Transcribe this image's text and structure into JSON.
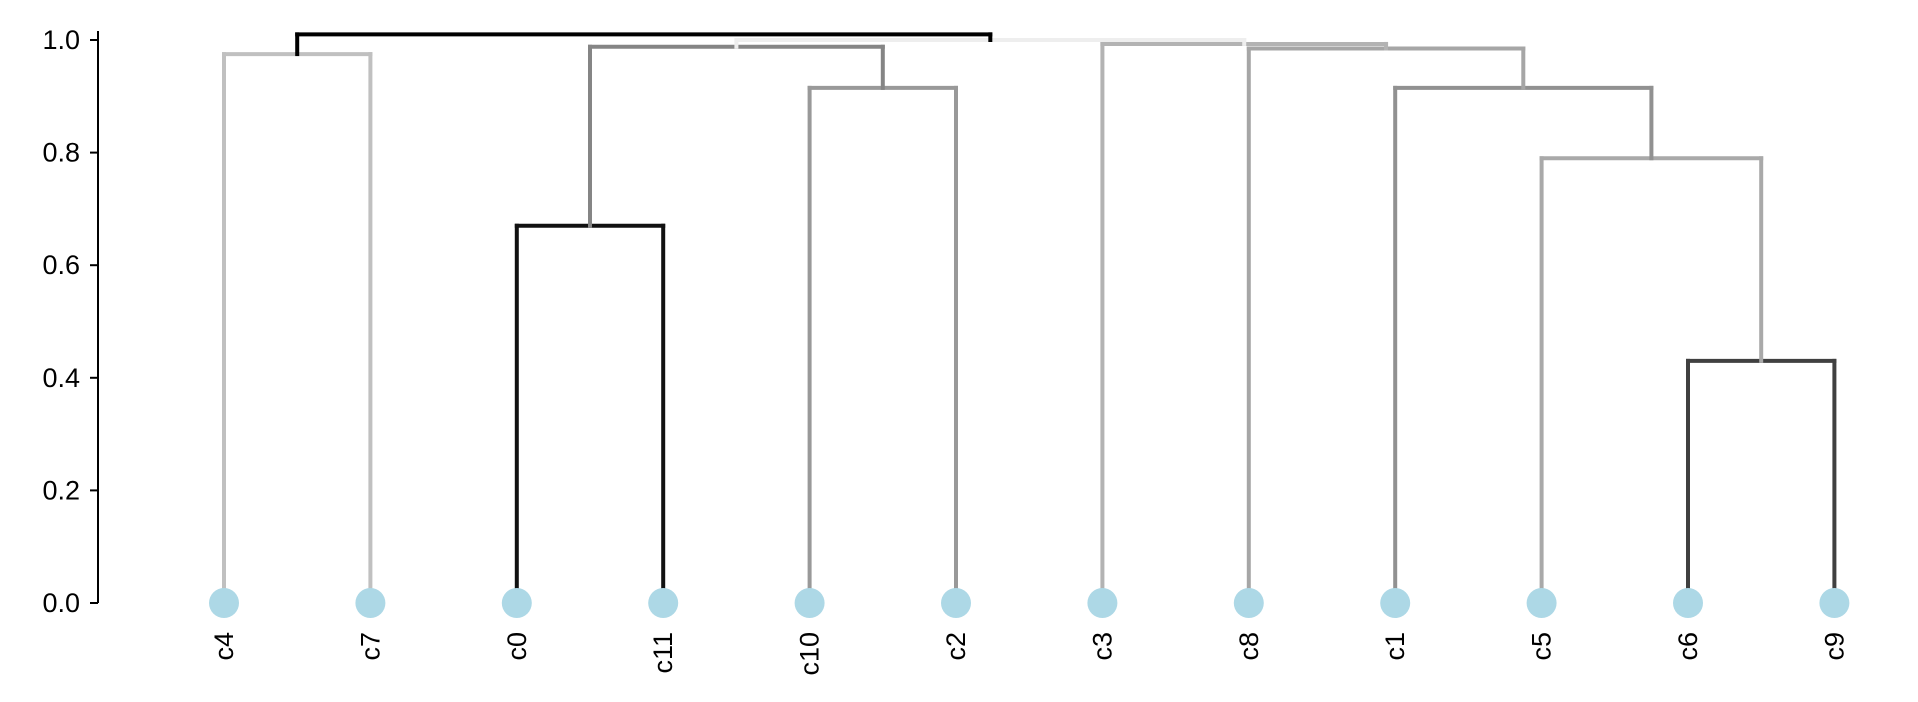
{
  "chart_data": {
    "type": "dendrogram",
    "y_axis": {
      "range": [
        0,
        1.0
      ],
      "ticks": [
        "0.0",
        "0.2",
        "0.4",
        "0.6",
        "0.8",
        "1.0"
      ]
    },
    "leaves": [
      "c4",
      "c7",
      "c0",
      "c11",
      "c10",
      "c2",
      "c3",
      "c8",
      "c1",
      "c5",
      "c6",
      "c9"
    ],
    "leaf_marker_color": "#add8e6",
    "merges": [
      {
        "id": "m_c0_c11",
        "left": "c0",
        "right": "c11",
        "height": 0.67,
        "color": "#111111"
      },
      {
        "id": "m_c6_c9",
        "left": "c6",
        "right": "c9",
        "height": 0.43,
        "color": "#404040"
      },
      {
        "id": "m_c5_m",
        "left": "c5",
        "right": "m_c6_c9",
        "height": 0.79,
        "color": "#a9a9a9"
      },
      {
        "id": "m_c1_m",
        "left": "c1",
        "right": "m_c5_m",
        "height": 0.915,
        "color": "#919191"
      },
      {
        "id": "m_c10_c2",
        "left": "c10",
        "right": "c2",
        "height": 0.915,
        "color": "#999999"
      },
      {
        "id": "m_c4_c7",
        "left": "c4",
        "right": "c7",
        "height": 0.975,
        "color": "#c0c0c0"
      },
      {
        "id": "m_c8_m",
        "left": "c8",
        "right": "m_c1_m",
        "height": 0.985,
        "color": "#a6a6a6"
      },
      {
        "id": "m_g1",
        "left": "m_c0_c11",
        "right": "m_c10_c2",
        "height": 0.988,
        "color": "#858585"
      },
      {
        "id": "m_c3_m",
        "left": "c3",
        "right": "m_c8_m",
        "height": 0.993,
        "color": "#b3b3b3"
      },
      {
        "id": "m_g2",
        "left": "m_g1",
        "right": "m_c3_m",
        "height": 1.0,
        "color": "#eeeeee"
      },
      {
        "id": "m_root",
        "left": "m_c4_c7",
        "right": "m_g2",
        "height": 1.01,
        "color": "#000000"
      }
    ]
  }
}
